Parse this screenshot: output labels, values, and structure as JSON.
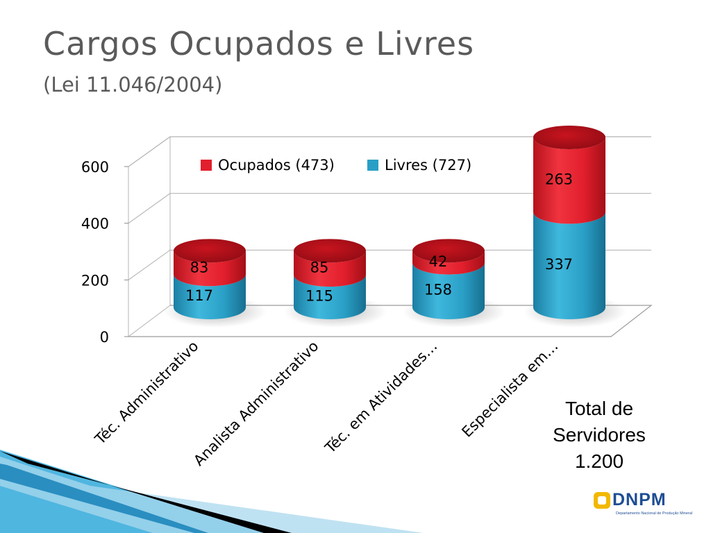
{
  "slide": {
    "title": "Cargos Ocupados e Livres",
    "subtitle": "(Lei 11.046/2004)",
    "total_text": "Total de Servidores 1.200",
    "logo_text": "DNPM",
    "logo_tagline": "Departamento Nacional de Produção Mineral"
  },
  "chart_data": {
    "type": "bar",
    "stacked": true,
    "style": "3d-cylinder",
    "categories": [
      "Téc. Administrativo",
      "Analista Administrativo",
      "Téc. em Atividades…",
      "Especialista em…"
    ],
    "series": [
      {
        "name": "Livres (727)",
        "color": "#2a9fc6",
        "values": [
          117,
          115,
          158,
          337
        ]
      },
      {
        "name": "Ocupados (473)",
        "color": "#e21f2c",
        "values": [
          83,
          85,
          42,
          263
        ]
      }
    ],
    "yticks": [
      0,
      200,
      400,
      600
    ],
    "ylim": [
      0,
      600
    ],
    "grid": true,
    "legend_position": "top-center",
    "legend": [
      "Ocupados (473)",
      "Livres (727)"
    ]
  }
}
